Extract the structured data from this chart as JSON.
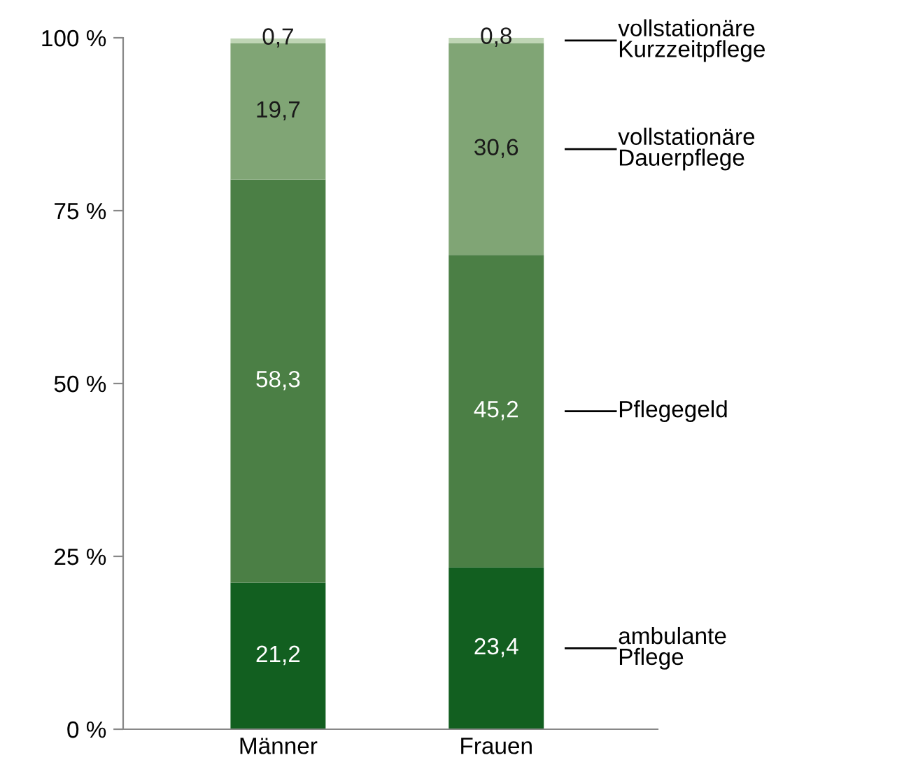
{
  "chart_data": {
    "type": "bar",
    "stacked": true,
    "categories": [
      "Männer",
      "Frauen"
    ],
    "series": [
      {
        "name": "ambulante\nPflege",
        "color": "#125f20",
        "values": [
          21.2,
          23.4
        ],
        "value_labels": [
          "21,2",
          "23,4"
        ]
      },
      {
        "name": "Pflegegeld",
        "color": "#4b7f45",
        "values": [
          58.3,
          45.2
        ],
        "value_labels": [
          "58,3",
          "45,2"
        ]
      },
      {
        "name": "vollstationäre\nDauerpflege",
        "color": "#80a575",
        "values": [
          19.7,
          30.6
        ],
        "value_labels": [
          "19,7",
          "30,6"
        ]
      },
      {
        "name": "vollstationäre\nKurzzeitpflege",
        "color": "#bfd5b5",
        "values": [
          0.7,
          0.8
        ],
        "value_labels": [
          "0,7",
          "0,8"
        ]
      }
    ],
    "ylim": [
      0,
      100
    ],
    "yticks": [
      {
        "value": 0,
        "label": "0 %"
      },
      {
        "value": 25,
        "label": "25 %"
      },
      {
        "value": 50,
        "label": "50 %"
      },
      {
        "value": 75,
        "label": "75 %"
      },
      {
        "value": 100,
        "label": "100 %"
      }
    ],
    "grid": false
  }
}
